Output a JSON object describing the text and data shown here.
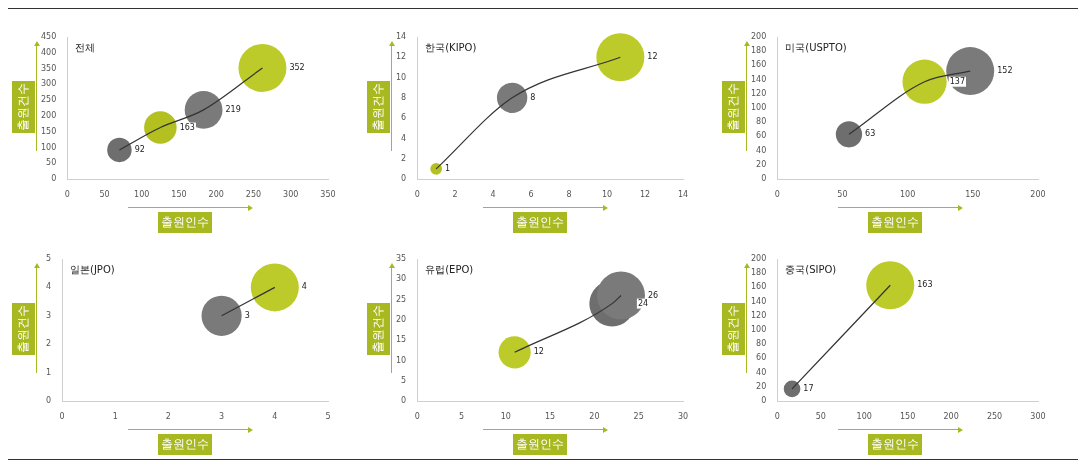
{
  "chart_data": [
    {
      "type": "bubble",
      "title": "전체",
      "xlabel": "출원인수",
      "ylabel": "출원건수",
      "xlim": [
        0,
        350
      ],
      "xticks": [
        0,
        50,
        100,
        150,
        200,
        250,
        300,
        350
      ],
      "ylim": [
        0,
        450
      ],
      "yticks": [
        0,
        50,
        100,
        150,
        200,
        250,
        300,
        350,
        400,
        450
      ],
      "grid": false,
      "series": [
        {
          "type": "bubble",
          "x": [
            70,
            125,
            183,
            262
          ],
          "values": [
            92,
            163,
            219,
            352
          ],
          "value_labels": [
            "92",
            "163",
            "219",
            "352"
          ],
          "sizes": [
            0.26,
            0.46,
            0.62,
            1
          ],
          "colors": [
            "#6e6e6e",
            "#b3c01f",
            "#7a7a7a",
            "#bccb2a"
          ]
        },
        {
          "type": "line",
          "x": [
            70,
            125,
            183,
            262
          ],
          "values": [
            92,
            163,
            219,
            352
          ],
          "color": "#333333"
        }
      ]
    },
    {
      "type": "bubble",
      "title": "한국(KIPO)",
      "xlabel": "출원인수",
      "ylabel": "출원건수",
      "xlim": [
        0,
        14
      ],
      "xticks": [
        0,
        2,
        4,
        6,
        8,
        10,
        12,
        14
      ],
      "ylim": [
        0,
        14
      ],
      "yticks": [
        0,
        2,
        4,
        6,
        8,
        10,
        12,
        14
      ],
      "grid": false,
      "series": [
        {
          "type": "bubble",
          "x": [
            1,
            5,
            10.7
          ],
          "values": [
            1,
            8,
            12
          ],
          "value_labels": [
            "1",
            "8",
            "12"
          ],
          "sizes": [
            0.06,
            0.4,
            1
          ],
          "colors": [
            "#b3c01f",
            "#7a7a7a",
            "#bccb2a"
          ]
        },
        {
          "type": "line",
          "x": [
            1,
            5,
            10.7
          ],
          "values": [
            1,
            8,
            12
          ],
          "color": "#333333"
        }
      ]
    },
    {
      "type": "bubble",
      "title": "미국(USPTO)",
      "xlabel": "출원인수",
      "ylabel": "출원건수",
      "xlim": [
        0,
        200
      ],
      "xticks": [
        0,
        50,
        100,
        150,
        200
      ],
      "ylim": [
        0,
        200
      ],
      "yticks": [
        0,
        20,
        40,
        60,
        80,
        100,
        120,
        140,
        160,
        180,
        200
      ],
      "grid": false,
      "series": [
        {
          "type": "bubble",
          "x": [
            55,
            113,
            148
          ],
          "values": [
            63,
            137,
            152
          ],
          "value_labels": [
            "63",
            "137",
            "152"
          ],
          "sizes": [
            0.3,
            0.85,
            1
          ],
          "colors": [
            "#6e6e6e",
            "#bccb2a",
            "#7a7a7a"
          ]
        },
        {
          "type": "line",
          "x": [
            55,
            113,
            148
          ],
          "values": [
            63,
            137,
            152
          ],
          "color": "#333333"
        }
      ]
    },
    {
      "type": "bubble",
      "title": "일본(JPO)",
      "xlabel": "출원인수",
      "ylabel": "출원건수",
      "xlim": [
        0,
        5
      ],
      "xticks": [
        0,
        1,
        2,
        3,
        4,
        5
      ],
      "ylim": [
        0,
        5
      ],
      "yticks": [
        0,
        1,
        2,
        3,
        4,
        5
      ],
      "grid": false,
      "series": [
        {
          "type": "bubble",
          "x": [
            3,
            4
          ],
          "values": [
            3,
            4
          ],
          "value_labels": [
            "3",
            "4"
          ],
          "sizes": [
            0.7,
            1
          ],
          "colors": [
            "#7a7a7a",
            "#bccb2a"
          ]
        },
        {
          "type": "line",
          "x": [
            3,
            4
          ],
          "values": [
            3,
            4
          ],
          "color": "#333333"
        }
      ]
    },
    {
      "type": "bubble",
      "title": "유럽(EPO)",
      "xlabel": "출원인수",
      "ylabel": "출원건수",
      "xlim": [
        0,
        30
      ],
      "xticks": [
        0,
        5,
        10,
        15,
        20,
        25,
        30
      ],
      "ylim": [
        0,
        35
      ],
      "yticks": [
        0,
        5,
        10,
        15,
        20,
        25,
        30,
        35
      ],
      "grid": false,
      "series": [
        {
          "type": "bubble",
          "x": [
            11,
            22,
            23
          ],
          "values": [
            12,
            24,
            26
          ],
          "value_labels": [
            "12",
            "24",
            "26"
          ],
          "sizes": [
            0.45,
            0.9,
            1
          ],
          "colors": [
            "#bccb2a",
            "#6e6e6e",
            "#7a7a7a"
          ]
        },
        {
          "type": "line",
          "x": [
            11,
            22,
            23
          ],
          "values": [
            12,
            24,
            26
          ],
          "color": "#333333"
        }
      ]
    },
    {
      "type": "bubble",
      "title": "중국(SIPO)",
      "xlabel": "출원인수",
      "ylabel": "출원건수",
      "xlim": [
        0,
        300
      ],
      "xticks": [
        0,
        50,
        100,
        150,
        200,
        250,
        300
      ],
      "ylim": [
        0,
        200
      ],
      "yticks": [
        0,
        20,
        40,
        60,
        80,
        100,
        120,
        140,
        160,
        180,
        200
      ],
      "grid": false,
      "series": [
        {
          "type": "bubble",
          "x": [
            17,
            130
          ],
          "values": [
            17,
            163
          ],
          "value_labels": [
            "17",
            "163"
          ],
          "sizes": [
            0.12,
            1
          ],
          "colors": [
            "#6e6e6e",
            "#bccb2a"
          ]
        },
        {
          "type": "line",
          "x": [
            17,
            130
          ],
          "values": [
            17,
            163
          ],
          "color": "#333333"
        }
      ]
    }
  ]
}
